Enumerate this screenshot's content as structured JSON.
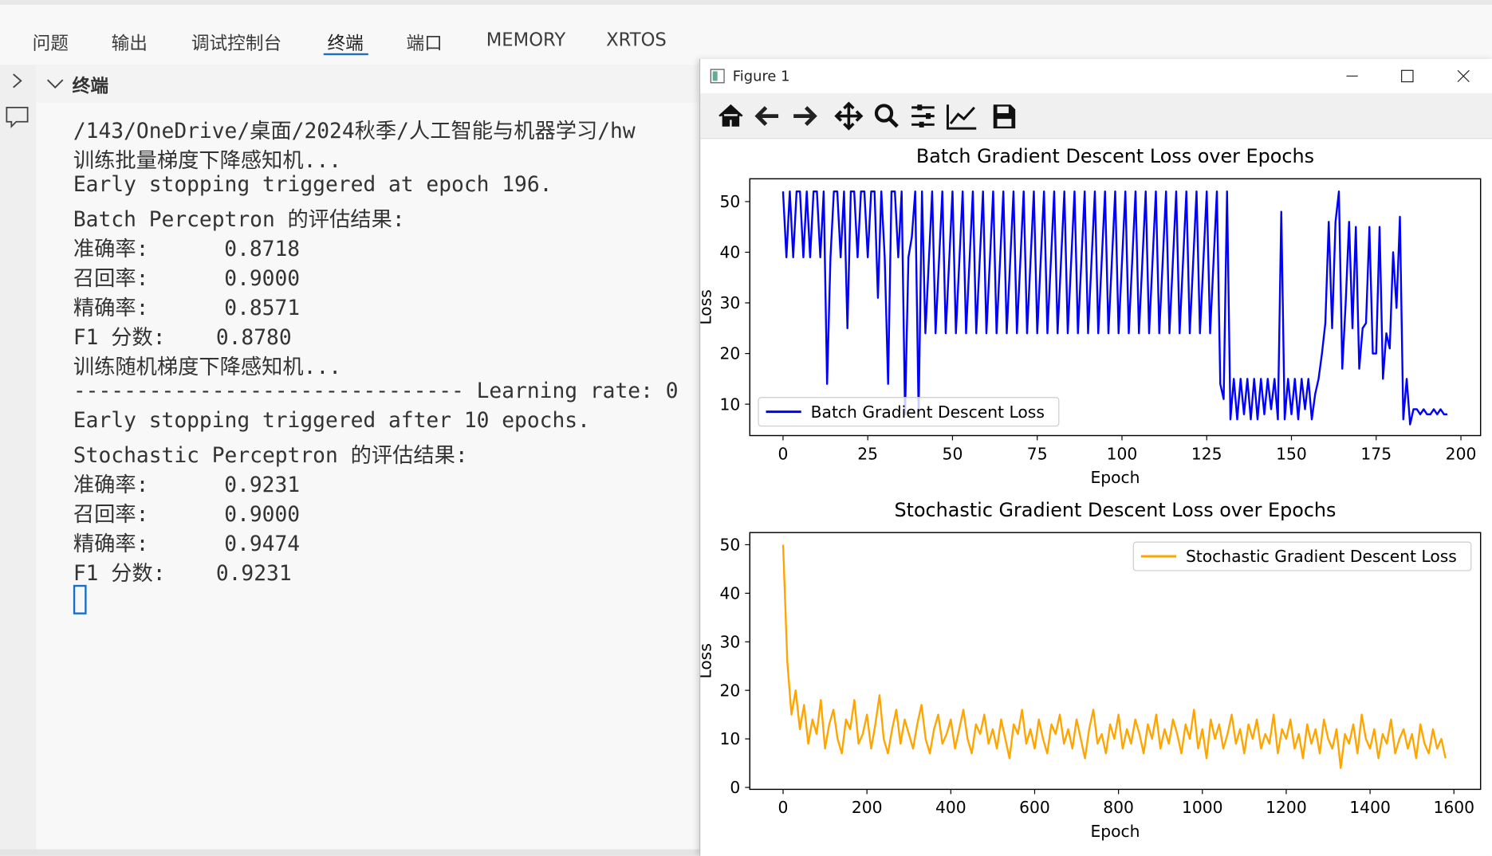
{
  "tabs": [
    "问题",
    "输出",
    "调试控制台",
    "终端",
    "端口",
    "MEMORY",
    "XRTOS"
  ],
  "panel_title": "终端",
  "terminal_lines": [
    "/143/OneDrive/桌面/2024秋季/人工智能与机器学习/hw",
    "训练批量梯度下降感知机...",
    "Early stopping triggered at epoch 196.",
    "Batch Perceptron 的评估结果:",
    "准确率:      0.8718",
    "召回率:      0.9000",
    "精确率:      0.8571",
    "F1 分数:    0.8780",
    "训练随机梯度下降感知机...",
    "------------------------------- Learning rate: 0",
    "Early stopping triggered after 10 epochs.",
    "Stochastic Perceptron 的评估结果:",
    "准确率:      0.9231",
    "召回率:      0.9000",
    "精确率:      0.9474",
    "F1 分数:    0.9231"
  ],
  "figure_title": "Figure 1",
  "chart_data": [
    {
      "type": "line",
      "title": "Batch Gradient Descent Loss over Epochs",
      "xlabel": "Epoch",
      "ylabel": "Loss",
      "x": [
        0,
        1,
        2,
        3,
        4,
        5,
        6,
        7,
        8,
        9,
        10,
        11,
        12,
        13,
        14,
        15,
        16,
        17,
        18,
        19,
        20,
        21,
        22,
        23,
        24,
        25,
        26,
        27,
        28,
        29,
        30,
        31,
        32,
        33,
        34,
        35,
        36,
        37,
        38,
        39,
        40,
        41,
        42,
        43,
        44,
        45,
        46,
        47,
        48,
        49,
        50,
        51,
        52,
        53,
        54,
        55,
        56,
        57,
        58,
        59,
        60,
        61,
        62,
        63,
        64,
        65,
        66,
        67,
        68,
        69,
        70,
        71,
        72,
        73,
        74,
        75,
        76,
        77,
        78,
        79,
        80,
        81,
        82,
        83,
        84,
        85,
        86,
        87,
        88,
        89,
        90,
        91,
        92,
        93,
        94,
        95,
        96,
        97,
        98,
        99,
        100,
        101,
        102,
        103,
        104,
        105,
        106,
        107,
        108,
        109,
        110,
        111,
        112,
        113,
        114,
        115,
        116,
        117,
        118,
        119,
        120,
        121,
        122,
        123,
        124,
        125,
        126,
        127,
        128,
        129,
        130,
        131,
        132,
        133,
        134,
        135,
        136,
        137,
        138,
        139,
        140,
        141,
        142,
        143,
        144,
        145,
        146,
        147,
        148,
        149,
        150,
        151,
        152,
        153,
        154,
        155,
        156,
        157,
        158,
        159,
        160,
        161,
        162,
        163,
        164,
        165,
        166,
        167,
        168,
        169,
        170,
        171,
        172,
        173,
        174,
        175,
        176,
        177,
        178,
        179,
        180,
        181,
        182,
        183,
        184,
        185,
        186,
        187,
        188,
        189,
        190,
        191,
        192,
        193,
        194,
        195,
        196
      ],
      "series": [
        {
          "name": "Batch Gradient Descent Loss",
          "color": "#0000ff",
          "values": [
            52,
            39,
            52,
            39,
            52,
            52,
            39,
            52,
            39,
            52,
            52,
            39,
            52,
            14,
            39,
            52,
            52,
            39,
            52,
            25,
            52,
            52,
            39,
            52,
            52,
            39,
            52,
            52,
            31,
            52,
            39,
            14,
            52,
            52,
            39,
            52,
            8,
            39,
            43,
            52,
            8,
            52,
            24,
            38,
            52,
            24,
            38,
            52,
            24,
            38,
            52,
            24,
            38,
            52,
            24,
            38,
            52,
            24,
            38,
            52,
            24,
            38,
            52,
            24,
            38,
            52,
            24,
            38,
            52,
            24,
            38,
            52,
            24,
            38,
            52,
            24,
            38,
            52,
            24,
            38,
            52,
            24,
            38,
            52,
            24,
            38,
            52,
            24,
            38,
            52,
            24,
            38,
            52,
            24,
            38,
            52,
            24,
            38,
            52,
            24,
            38,
            52,
            24,
            38,
            52,
            24,
            38,
            52,
            24,
            38,
            52,
            24,
            38,
            52,
            24,
            38,
            52,
            24,
            38,
            52,
            24,
            38,
            52,
            24,
            38,
            52,
            24,
            38,
            52,
            14,
            11,
            52,
            7,
            15,
            7,
            15,
            8,
            15,
            7,
            15,
            7,
            15,
            8,
            15,
            9,
            15,
            7,
            48,
            7,
            15,
            8,
            15,
            7,
            15,
            9,
            15,
            7,
            12,
            15,
            20,
            26,
            46,
            25,
            46,
            52,
            17,
            30,
            46,
            25,
            45,
            17,
            25,
            26,
            45,
            20,
            20,
            45,
            15,
            24,
            21,
            40,
            29,
            47,
            7,
            15,
            6,
            9,
            9,
            8,
            9,
            8,
            8,
            9,
            8,
            9,
            8,
            8
          ]
        }
      ],
      "xlim": [
        -9.8,
        205.8
      ],
      "ylim": [
        3.8,
        54.5
      ],
      "xticks": [
        0,
        25,
        50,
        75,
        100,
        125,
        150,
        175,
        200
      ],
      "yticks": [
        10,
        20,
        30,
        40,
        50
      ],
      "legend": "lower left"
    },
    {
      "type": "line",
      "title": "Stochastic Gradient Descent Loss over Epochs",
      "xlabel": "Epoch",
      "ylabel": "Loss",
      "x": [
        0,
        10,
        20,
        30,
        40,
        50,
        60,
        70,
        80,
        90,
        100,
        110,
        120,
        130,
        140,
        150,
        160,
        170,
        180,
        190,
        200,
        210,
        220,
        230,
        240,
        250,
        260,
        270,
        280,
        290,
        300,
        310,
        320,
        330,
        340,
        350,
        360,
        370,
        380,
        390,
        400,
        410,
        420,
        430,
        440,
        450,
        460,
        470,
        480,
        490,
        500,
        510,
        520,
        530,
        540,
        550,
        560,
        570,
        580,
        590,
        600,
        610,
        620,
        630,
        640,
        650,
        660,
        670,
        680,
        690,
        700,
        710,
        720,
        730,
        740,
        750,
        760,
        770,
        780,
        790,
        800,
        810,
        820,
        830,
        840,
        850,
        860,
        870,
        880,
        890,
        900,
        910,
        920,
        930,
        940,
        950,
        960,
        970,
        980,
        990,
        1000,
        1010,
        1020,
        1030,
        1040,
        1050,
        1060,
        1070,
        1080,
        1090,
        1100,
        1110,
        1120,
        1130,
        1140,
        1150,
        1160,
        1170,
        1180,
        1190,
        1200,
        1210,
        1220,
        1230,
        1240,
        1250,
        1260,
        1270,
        1280,
        1290,
        1300,
        1310,
        1320,
        1330,
        1340,
        1350,
        1360,
        1370,
        1380,
        1390,
        1400,
        1410,
        1420,
        1430,
        1440,
        1450,
        1460,
        1470,
        1480,
        1490,
        1500,
        1510,
        1520,
        1530,
        1540,
        1550,
        1560,
        1570,
        1580
      ],
      "series": [
        {
          "name": "Stochastic Gradient Descent Loss",
          "color": "#ffa500",
          "values": [
            50,
            26,
            15,
            20,
            12,
            17,
            9,
            14,
            11,
            18,
            8,
            13,
            16,
            10,
            7,
            14,
            12,
            18,
            9,
            11,
            15,
            8,
            13,
            19,
            10,
            7,
            12,
            16,
            9,
            14,
            11,
            8,
            13,
            17,
            10,
            7,
            12,
            15,
            9,
            11,
            14,
            8,
            12,
            16,
            10,
            7,
            13,
            11,
            15,
            9,
            12,
            8,
            14,
            10,
            6,
            13,
            11,
            16,
            9,
            12,
            8,
            14,
            10,
            7,
            13,
            11,
            15,
            9,
            12,
            8,
            14,
            10,
            6,
            12,
            16,
            9,
            11,
            7,
            13,
            10,
            15,
            8,
            12,
            9,
            14,
            11,
            7,
            13,
            10,
            15,
            8,
            12,
            9,
            14,
            11,
            7,
            13,
            10,
            16,
            8,
            12,
            6,
            14,
            10,
            13,
            8,
            11,
            15,
            9,
            12,
            7,
            13,
            10,
            14,
            8,
            11,
            9,
            15,
            7,
            12,
            10,
            14,
            8,
            11,
            6,
            13,
            9,
            12,
            7,
            14,
            10,
            8,
            12,
            4,
            11,
            9,
            13,
            7,
            15,
            10,
            8,
            12,
            6,
            11,
            9,
            14,
            7,
            10,
            12,
            8,
            11,
            6,
            13,
            9,
            7,
            12,
            8,
            10,
            6
          ]
        }
      ],
      "xlim": [
        -79.4,
        1663.6
      ],
      "ylim": [
        -0.4,
        52.5
      ],
      "xticks": [
        0,
        200,
        400,
        600,
        800,
        1000,
        1200,
        1400,
        1600
      ],
      "yticks": [
        0,
        10,
        20,
        30,
        40,
        50
      ],
      "legend": "upper right"
    }
  ]
}
